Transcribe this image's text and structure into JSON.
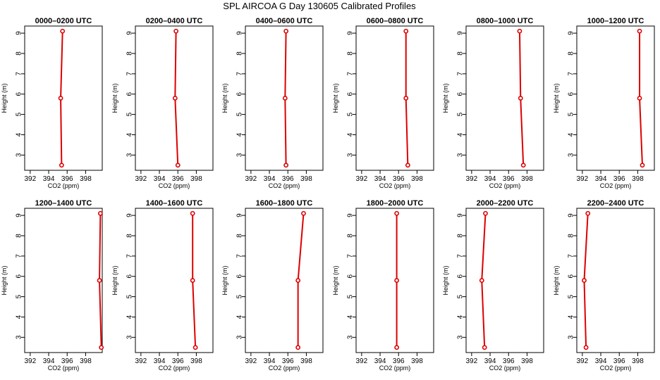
{
  "title": "SPL AIRCOA G  Day 130605  Calibrated Profiles",
  "chart_data": [
    {
      "type": "line",
      "title": "0000–0200 UTC",
      "xlabel": "CO2 (ppm)",
      "ylabel": "Height (m)",
      "x": [
        395.4,
        395.3,
        395.5
      ],
      "y": [
        2.5,
        5.8,
        9.1
      ]
    },
    {
      "type": "line",
      "title": "0200–0400 UTC",
      "xlabel": "CO2 (ppm)",
      "ylabel": "Height (m)",
      "x": [
        396.0,
        395.7,
        395.8
      ],
      "y": [
        2.5,
        5.8,
        9.1
      ]
    },
    {
      "type": "line",
      "title": "0400–0600 UTC",
      "xlabel": "CO2 (ppm)",
      "ylabel": "Height (m)",
      "x": [
        395.8,
        395.7,
        395.8
      ],
      "y": [
        2.5,
        5.8,
        9.1
      ]
    },
    {
      "type": "line",
      "title": "0600–0800 UTC",
      "xlabel": "CO2 (ppm)",
      "ylabel": "Height (m)",
      "x": [
        397.0,
        396.8,
        396.8
      ],
      "y": [
        2.5,
        5.8,
        9.1
      ]
    },
    {
      "type": "line",
      "title": "0800–1000 UTC",
      "xlabel": "CO2 (ppm)",
      "ylabel": "Height (m)",
      "x": [
        397.6,
        397.3,
        397.2
      ],
      "y": [
        2.5,
        5.8,
        9.1
      ]
    },
    {
      "type": "line",
      "title": "1000–1200 UTC",
      "xlabel": "CO2 (ppm)",
      "ylabel": "Height (m)",
      "x": [
        398.5,
        398.2,
        398.2
      ],
      "y": [
        2.5,
        5.8,
        9.1
      ]
    },
    {
      "type": "line",
      "title": "1200–1400 UTC",
      "xlabel": "CO2 (ppm)",
      "ylabel": "Height (m)",
      "x": [
        399.7,
        399.5,
        399.6
      ],
      "y": [
        2.5,
        5.8,
        9.1
      ]
    },
    {
      "type": "line",
      "title": "1400–1600 UTC",
      "xlabel": "CO2 (ppm)",
      "ylabel": "Height (m)",
      "x": [
        397.9,
        397.6,
        397.6
      ],
      "y": [
        2.5,
        5.8,
        9.1
      ]
    },
    {
      "type": "line",
      "title": "1600–1800 UTC",
      "xlabel": "CO2 (ppm)",
      "ylabel": "Height (m)",
      "x": [
        397.1,
        397.1,
        397.7
      ],
      "y": [
        2.5,
        5.8,
        9.1
      ]
    },
    {
      "type": "line",
      "title": "1800–2000 UTC",
      "xlabel": "CO2 (ppm)",
      "ylabel": "Height (m)",
      "x": [
        395.8,
        395.8,
        395.8
      ],
      "y": [
        2.5,
        5.8,
        9.1
      ]
    },
    {
      "type": "line",
      "title": "2000–2200 UTC",
      "xlabel": "CO2 (ppm)",
      "ylabel": "Height (m)",
      "x": [
        393.4,
        393.1,
        393.5
      ],
      "y": [
        2.5,
        5.8,
        9.1
      ]
    },
    {
      "type": "line",
      "title": "2200–2400 UTC",
      "xlabel": "CO2 (ppm)",
      "ylabel": "Height (m)",
      "x": [
        392.4,
        392.2,
        392.6
      ],
      "y": [
        2.5,
        5.8,
        9.1
      ]
    }
  ],
  "axes": {
    "xticks": [
      392,
      394,
      396,
      398
    ],
    "yticks": [
      3,
      4,
      5,
      6,
      7,
      8,
      9
    ],
    "xlim": [
      391.4,
      399.8
    ],
    "ylim": [
      2.25,
      9.35
    ]
  },
  "colors": {
    "line": "#dd0000",
    "marker": "#dd0000",
    "axis": "#000000"
  }
}
